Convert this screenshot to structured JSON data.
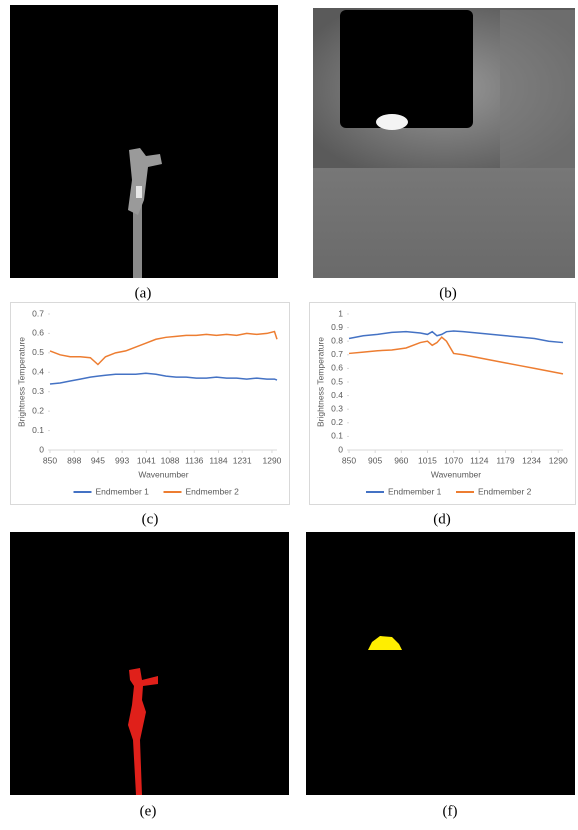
{
  "captions": [
    "(a)",
    "(b)",
    "(c)",
    "(d)",
    "(e)",
    "(f)"
  ],
  "chart_data": [
    {
      "type": "line",
      "x_label": "Wavenumber",
      "y_label": "Brightness Temperature",
      "x": [
        850,
        870,
        890,
        910,
        930,
        945,
        960,
        980,
        1000,
        1020,
        1040,
        1060,
        1080,
        1100,
        1120,
        1140,
        1160,
        1180,
        1200,
        1220,
        1240,
        1260,
        1280,
        1295,
        1300
      ],
      "series": [
        {
          "name": "Endmember 1",
          "color": "#4472c4",
          "values": [
            0.34,
            0.345,
            0.355,
            0.365,
            0.375,
            0.38,
            0.385,
            0.39,
            0.39,
            0.39,
            0.395,
            0.39,
            0.38,
            0.375,
            0.375,
            0.37,
            0.37,
            0.375,
            0.37,
            0.37,
            0.365,
            0.37,
            0.365,
            0.365,
            0.36
          ]
        },
        {
          "name": "Endmember 2",
          "color": "#ed7d31",
          "values": [
            0.51,
            0.49,
            0.48,
            0.48,
            0.475,
            0.44,
            0.48,
            0.5,
            0.51,
            0.53,
            0.55,
            0.57,
            0.58,
            0.585,
            0.59,
            0.59,
            0.595,
            0.59,
            0.595,
            0.59,
            0.6,
            0.595,
            0.6,
            0.61,
            0.57
          ]
        }
      ],
      "xlim": [
        850,
        1300
      ],
      "xticks": [
        850,
        898,
        945,
        993,
        1041,
        1088,
        1136,
        1184,
        1231,
        1290
      ],
      "ylim": [
        0,
        0.7
      ],
      "yticks": [
        0,
        0.1,
        0.2,
        0.3,
        0.4,
        0.5,
        0.6,
        0.7
      ],
      "legend": "bottom"
    },
    {
      "type": "line",
      "x_label": "Wavenumber",
      "y_label": "Brightness Temperature",
      "x": [
        850,
        880,
        910,
        940,
        970,
        1000,
        1015,
        1025,
        1035,
        1045,
        1055,
        1070,
        1090,
        1120,
        1150,
        1180,
        1210,
        1240,
        1270,
        1300
      ],
      "series": [
        {
          "name": "Endmember 1",
          "color": "#4472c4",
          "values": [
            0.82,
            0.84,
            0.85,
            0.865,
            0.87,
            0.86,
            0.85,
            0.87,
            0.84,
            0.85,
            0.87,
            0.875,
            0.87,
            0.86,
            0.85,
            0.84,
            0.83,
            0.82,
            0.8,
            0.79
          ]
        },
        {
          "name": "Endmember 2",
          "color": "#ed7d31",
          "values": [
            0.71,
            0.72,
            0.73,
            0.735,
            0.75,
            0.79,
            0.8,
            0.77,
            0.79,
            0.83,
            0.8,
            0.71,
            0.7,
            0.68,
            0.66,
            0.64,
            0.62,
            0.6,
            0.58,
            0.56
          ]
        }
      ],
      "xlim": [
        850,
        1300
      ],
      "xticks": [
        850,
        905,
        960,
        1015,
        1070,
        1124,
        1179,
        1234,
        1290
      ],
      "ylim": [
        0,
        1
      ],
      "yticks": [
        0,
        0.1,
        0.2,
        0.3,
        0.4,
        0.5,
        0.6,
        0.7,
        0.8,
        0.9,
        1
      ],
      "legend": "bottom"
    }
  ]
}
